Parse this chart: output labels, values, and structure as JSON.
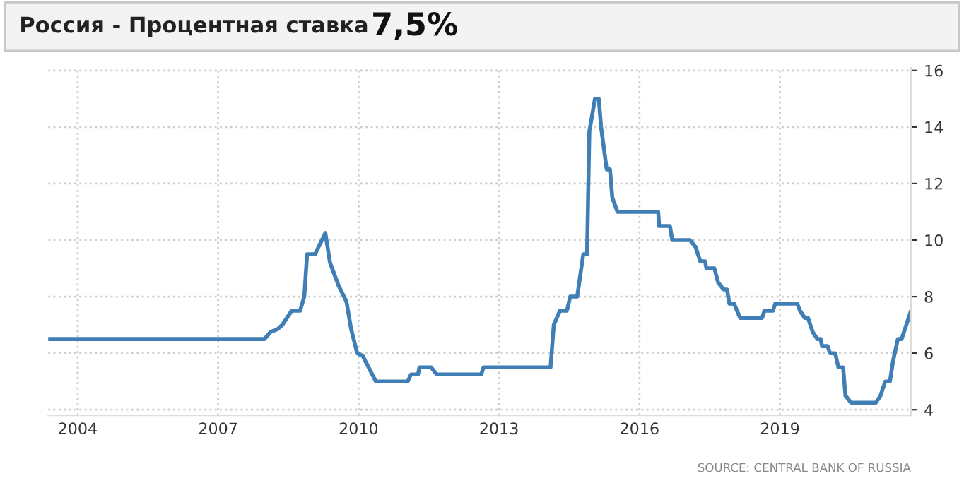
{
  "chart_data": {
    "type": "line",
    "title": "Россия - Процентная ставка",
    "annotations": [
      "7,5%",
      "SOURCE: CENTRAL BANK OF RUSSIA"
    ],
    "x": [
      2003.37,
      2007.99,
      2008.12,
      2008.27,
      2008.37,
      2008.57,
      2008.75,
      2008.84,
      2008.9,
      2009.07,
      2009.29,
      2009.39,
      2009.57,
      2009.74,
      2009.84,
      2009.97,
      2010.09,
      2010.22,
      2010.37,
      2011.05,
      2011.12,
      2011.27,
      2011.3,
      2011.55,
      2011.67,
      2012.62,
      2012.67,
      2014.1,
      2014.17,
      2014.3,
      2014.45,
      2014.52,
      2014.67,
      2014.8,
      2014.88,
      2014.93,
      2015.05,
      2015.13,
      2015.18,
      2015.3,
      2015.37,
      2015.42,
      2015.53,
      2016.4,
      2016.42,
      2016.65,
      2016.7,
      2017.08,
      2017.2,
      2017.3,
      2017.4,
      2017.43,
      2017.6,
      2017.68,
      2017.8,
      2017.87,
      2017.92,
      2018.02,
      2018.15,
      2018.62,
      2018.67,
      2018.85,
      2018.9,
      2019.37,
      2019.43,
      2019.53,
      2019.6,
      2019.7,
      2019.8,
      2019.87,
      2019.9,
      2020.02,
      2020.07,
      2020.18,
      2020.25,
      2020.35,
      2020.4,
      2020.52,
      2021.05,
      2021.15,
      2021.25,
      2021.35,
      2021.42,
      2021.52,
      2021.6,
      2021.8
    ],
    "values": [
      6.5,
      6.5,
      6.75,
      6.85,
      7.0,
      7.5,
      7.5,
      8.0,
      9.5,
      9.5,
      10.25,
      9.2,
      8.4,
      7.83,
      6.86,
      6.0,
      5.9,
      5.48,
      5.0,
      5.0,
      5.25,
      5.25,
      5.5,
      5.5,
      5.25,
      5.25,
      5.5,
      5.5,
      7.0,
      7.5,
      7.5,
      8.0,
      8.0,
      9.5,
      9.5,
      13.85,
      15.0,
      15.0,
      14.0,
      12.5,
      12.5,
      11.5,
      11.0,
      11.0,
      10.5,
      10.5,
      10.0,
      10.0,
      9.75,
      9.25,
      9.25,
      9.0,
      9.0,
      8.5,
      8.25,
      8.25,
      7.75,
      7.75,
      7.25,
      7.25,
      7.5,
      7.5,
      7.75,
      7.75,
      7.5,
      7.25,
      7.25,
      6.75,
      6.5,
      6.5,
      6.25,
      6.25,
      6.0,
      6.0,
      5.5,
      5.5,
      4.5,
      4.25,
      4.25,
      4.5,
      5.0,
      5.0,
      5.75,
      6.5,
      6.5,
      7.5
    ],
    "color": "#3f7fb6",
    "xlim": [
      2003.37,
      2021.8
    ],
    "ylim": [
      3.8,
      16.1
    ],
    "xticks": [
      2004,
      2007,
      2010,
      2013,
      2016,
      2019
    ],
    "yticks": [
      4,
      6,
      8,
      10,
      12,
      14,
      16
    ],
    "grid": true
  }
}
